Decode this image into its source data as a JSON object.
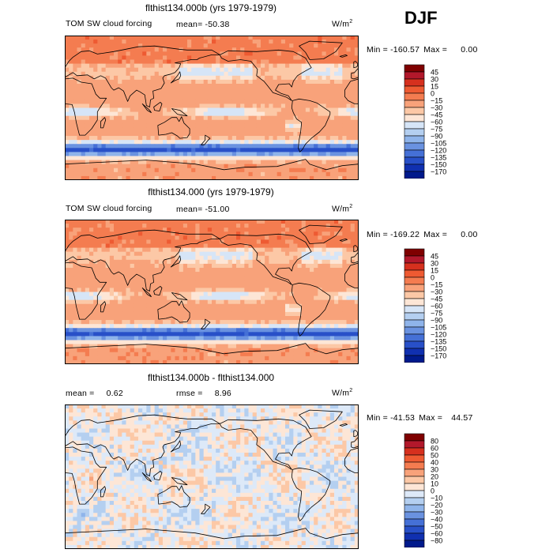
{
  "season": "DJF",
  "chart_data": [
    {
      "type": "heatmap",
      "title": "flthist134.000b (yrs 1979-1979)",
      "left_label": "TOM SW cloud forcing",
      "mean_label": "mean=",
      "mean_value": "-50.38",
      "units_base": "W/m",
      "units_exp": "2",
      "min_label": "Min =",
      "min_value": "-160.57",
      "max_label": "Max =",
      "max_value": "0.00",
      "colorbar_levels": [
        "45",
        "30",
        "15",
        "0",
        "−15",
        "−30",
        "−45",
        "−60",
        "−75",
        "−90",
        "−105",
        "−120",
        "−135",
        "−150",
        "−170"
      ],
      "colorbar_colors": [
        "#7f0000",
        "#b2182b",
        "#d6301e",
        "#ee5a32",
        "#f47c50",
        "#f8a27a",
        "#fcc8a6",
        "#fde6d6",
        "#d6e5f7",
        "#b4cff0",
        "#8fb4ea",
        "#6a92e0",
        "#4570d6",
        "#2850c8",
        "#1030b0",
        "#001a8c"
      ],
      "field": "model_b"
    },
    {
      "type": "heatmap",
      "title": "flthist134.000 (yrs 1979-1979)",
      "left_label": "TOM SW cloud forcing",
      "mean_label": "mean=",
      "mean_value": "-51.00",
      "units_base": "W/m",
      "units_exp": "2",
      "min_label": "Min =",
      "min_value": "-169.22",
      "max_label": "Max =",
      "max_value": "0.00",
      "colorbar_levels": [
        "45",
        "30",
        "15",
        "0",
        "−15",
        "−30",
        "−45",
        "−60",
        "−75",
        "−90",
        "−105",
        "−120",
        "−135",
        "−150",
        "−170"
      ],
      "colorbar_colors": [
        "#7f0000",
        "#b2182b",
        "#d6301e",
        "#ee5a32",
        "#f47c50",
        "#f8a27a",
        "#fcc8a6",
        "#fde6d6",
        "#d6e5f7",
        "#b4cff0",
        "#8fb4ea",
        "#6a92e0",
        "#4570d6",
        "#2850c8",
        "#1030b0",
        "#001a8c"
      ],
      "field": "model_a"
    },
    {
      "type": "heatmap",
      "title": "flthist134.000b - flthist134.000",
      "left_label": "mean =",
      "mean_label": "",
      "mean_value": "0.62",
      "rmse_label": "rmse =",
      "rmse_value": "8.96",
      "units_base": "W/m",
      "units_exp": "2",
      "min_label": "Min =",
      "min_value": "-41.53",
      "max_label": "Max =",
      "max_value": "44.57",
      "colorbar_levels": [
        "80",
        "60",
        "50",
        "40",
        "30",
        "20",
        "10",
        "0",
        "−10",
        "−20",
        "−30",
        "−40",
        "−50",
        "−60",
        "−80"
      ],
      "colorbar_colors": [
        "#7f0000",
        "#b2182b",
        "#d6301e",
        "#ee5a32",
        "#f47c50",
        "#f8a27a",
        "#fcc8a6",
        "#fde6d6",
        "#dde9f8",
        "#b4cff0",
        "#8fb4ea",
        "#6a92e0",
        "#4570d6",
        "#2850c8",
        "#1030b0",
        "#001a8c"
      ],
      "field": "difference"
    }
  ]
}
